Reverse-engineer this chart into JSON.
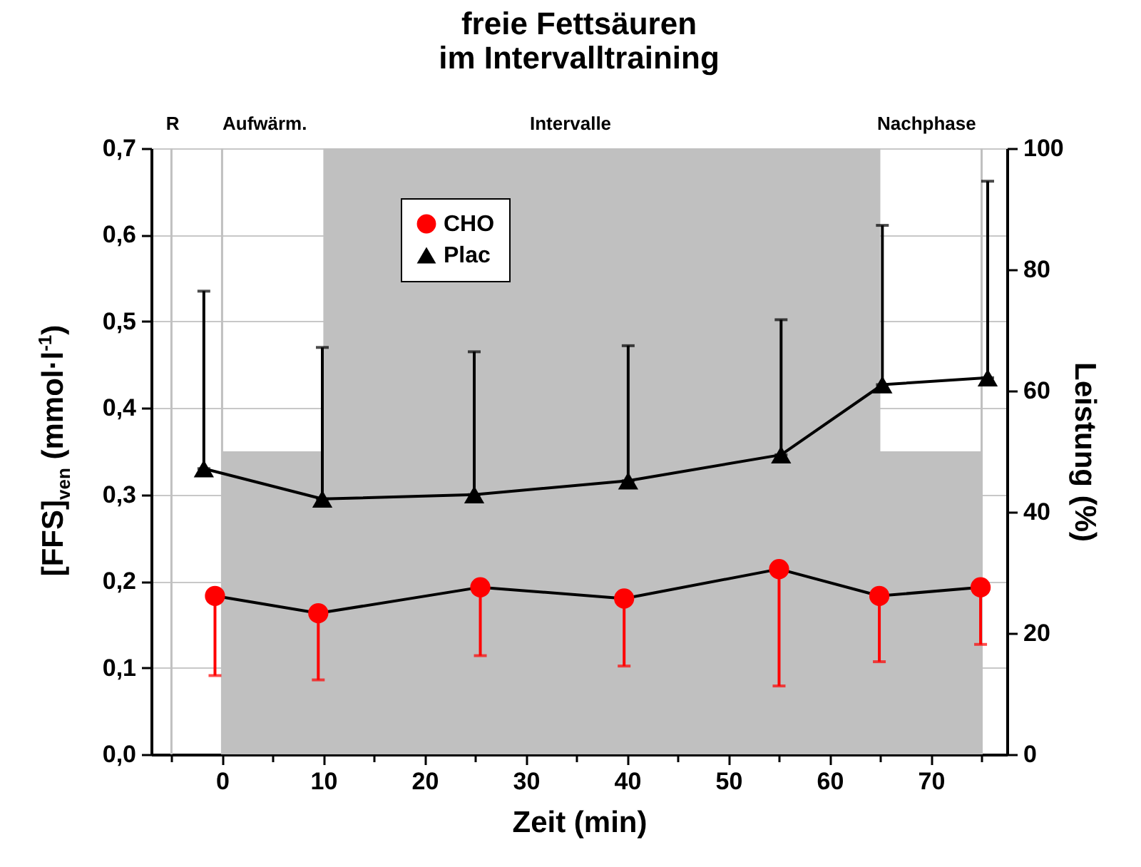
{
  "chart_data": {
    "type": "line",
    "title": "freie Fettsäuren\nim Intervalltraining",
    "xlabel": "Zeit (min)",
    "ylabel": "[FFS]$_{ven}$ (mmol·l$^{-1}$)",
    "y2label": "Leistung (%)",
    "xlim": [
      -7,
      77.5
    ],
    "xticks": [
      {
        "value": -5,
        "label": null
      },
      0,
      {
        "value": 5,
        "label": null
      },
      10,
      {
        "value": 15,
        "label": null
      },
      20,
      {
        "value": 25,
        "label": null
      },
      30,
      {
        "value": 35,
        "label": null
      },
      40,
      {
        "value": 45,
        "label": null
      },
      50,
      {
        "value": 55,
        "label": null
      },
      60,
      {
        "value": 65,
        "label": null
      },
      70,
      {
        "value": 75,
        "label": null
      }
    ],
    "ylim": [
      0,
      0.7
    ],
    "yticks": [
      {
        "value": 0,
        "label": "0,0"
      },
      {
        "value": 0.1,
        "label": "0,1"
      },
      {
        "value": 0.2,
        "label": "0,2"
      },
      {
        "value": 0.3,
        "label": "0,3"
      },
      {
        "value": 0.4,
        "label": "0,4"
      },
      {
        "value": 0.5,
        "label": "0,5"
      },
      {
        "value": 0.6,
        "label": "0,6"
      },
      {
        "value": 0.7,
        "label": "0,7"
      }
    ],
    "y2lim": [
      0,
      100
    ],
    "y2ticks": [
      0,
      20,
      40,
      60,
      80,
      100
    ],
    "grid": "y",
    "legend": "top left",
    "series": [
      {
        "type": "area",
        "axis": "y2",
        "color": "#c0c0c0",
        "x": [
          0,
          10,
          10,
          65,
          65,
          75
        ],
        "values": [
          50,
          50,
          100,
          100,
          50,
          50
        ]
      },
      {
        "name": "CHO",
        "color": "#ff0000",
        "marker": "circle",
        "x": [
          -0.7,
          9.5,
          25.5,
          39.7,
          55,
          64.9,
          74.9
        ],
        "values": [
          0.183,
          0.163,
          0.193,
          0.18,
          0.214,
          0.183,
          0.193
        ],
        "errors": [
          [
            0.091,
            0.183
          ],
          [
            0.086,
            0.163
          ],
          [
            0.114,
            0.193
          ],
          [
            0.102,
            0.18
          ],
          [
            0.079,
            0.214
          ],
          [
            0.107,
            0.183
          ],
          [
            0.127,
            0.193
          ]
        ]
      },
      {
        "name": "Plac",
        "color": "#000000",
        "marker": "triangle",
        "x": [
          -1.8,
          9.9,
          24.9,
          40.1,
          55.2,
          65.2,
          75.6
        ],
        "values": [
          0.33,
          0.295,
          0.3,
          0.316,
          0.346,
          0.427,
          0.435
        ],
        "errors": [
          [
            0.33,
            0.535
          ],
          [
            0.295,
            0.47
          ],
          [
            0.3,
            0.465
          ],
          [
            0.316,
            0.472
          ],
          [
            0.346,
            0.502
          ],
          [
            0.427,
            0.611
          ],
          [
            0.435,
            0.662
          ]
        ]
      }
    ],
    "ref_lines": [
      {
        "axis": "x",
        "value": -5,
        "color": "#c0c0c0"
      },
      {
        "axis": "x",
        "value": 0,
        "color": "#c0c0c0"
      },
      {
        "axis": "x",
        "value": 75,
        "color": "#c0c0c0"
      }
    ],
    "annotations": [
      "R",
      "Aufwärm.",
      "Intervalle",
      "Nachphase"
    ]
  }
}
